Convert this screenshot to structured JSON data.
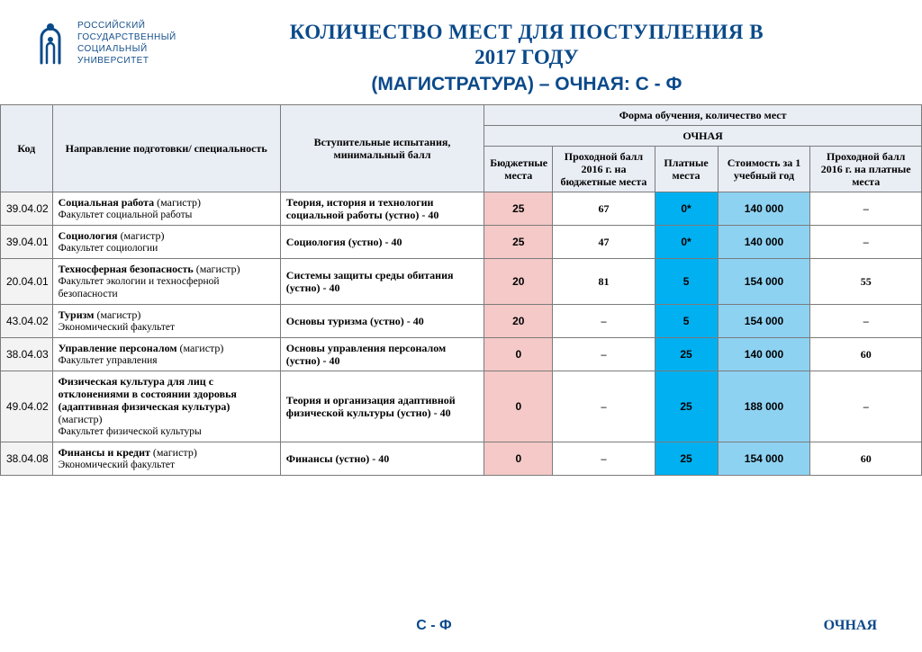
{
  "brand": {
    "line1": "РОССИЙСКИЙ",
    "line2": "ГОСУДАРСТВЕННЫЙ",
    "line3": "СОЦИАЛЬНЫЙ",
    "line4": "УНИВЕРСИТЕТ",
    "color": "#144f8a"
  },
  "title": {
    "line1": "КОЛИЧЕСТВО МЕСТ ДЛЯ ПОСТУПЛЕНИЯ В",
    "line2": "2017 ГОДУ",
    "line3": "(МАГИСТРАТУРА) – ОЧНАЯ: С - Ф",
    "color": "#0b4a8a"
  },
  "columns": {
    "code": "Код",
    "direction": "Направление подготовки/ специальность",
    "exam": "Вступительные испытания, минимальный балл",
    "group_top": "Форма обучения, количество мест",
    "group_sub": "ОЧНАЯ",
    "c1": "Бюджетные места",
    "c2": "Проходной балл 2016 г. на бюджетные места",
    "c3": "Платные места",
    "c4": "Стоимость за 1 учебный год",
    "c5": "Проходной балл 2016 г. на платные места"
  },
  "colors": {
    "header_bg": "#e9edf4",
    "code_bg": "#f3f3f3",
    "c1_bg": "#f4c9c7",
    "c3_bg": "#00b0f0",
    "c4_bg": "#8ed2f2",
    "border": "#7b7b7b",
    "page_bg": "#ffffff"
  },
  "rows": [
    {
      "code": "39.04.02",
      "dir_main": "Социальная работа",
      "dir_spec": "(магистр)",
      "dir_fac": "Факультет социальной работы",
      "exam": "Теория, история и технологии социальной работы (устно) - 40",
      "c1": "25",
      "c2": "67",
      "c3": "0*",
      "c4": "140 000",
      "c5": "–"
    },
    {
      "code": "39.04.01",
      "dir_main": "Социология",
      "dir_spec": "(магистр)",
      "dir_fac": "Факультет социологии",
      "exam": "Социология (устно) - 40",
      "c1": "25",
      "c2": "47",
      "c3": "0*",
      "c4": "140 000",
      "c5": "–"
    },
    {
      "code": "20.04.01",
      "dir_main": "Техносферная безопасность",
      "dir_spec": "(магистр)",
      "dir_fac": "Факультет экологии и техносферной безопасности",
      "exam": "Системы защиты среды обитания (устно) - 40",
      "c1": "20",
      "c2": "81",
      "c3": "5",
      "c4": "154 000",
      "c5": "55"
    },
    {
      "code": "43.04.02",
      "dir_main": "Туризм",
      "dir_spec": "(магистр)",
      "dir_fac": "Экономический факультет",
      "exam": "Основы туризма (устно) - 40",
      "c1": "20",
      "c2": "–",
      "c3": "5",
      "c4": "154 000",
      "c5": "–"
    },
    {
      "code": "38.04.03",
      "dir_main": "Управление персоналом",
      "dir_spec": "(магистр)",
      "dir_fac": "Факультет управления",
      "exam": "Основы управления персоналом (устно) - 40",
      "c1": "0",
      "c2": "–",
      "c3": "25",
      "c4": "140 000",
      "c5": "60"
    },
    {
      "code": "49.04.02",
      "dir_main": "Физическая культура для лиц с отклонениями в состоянии здоровья (адаптивная физическая культура)",
      "dir_spec": "(магистр)",
      "dir_fac": "Факультет физической культуры",
      "exam": "Теория и организация адаптивной физической культуры (устно) - 40",
      "c1": "0",
      "c2": "–",
      "c3": "25",
      "c4": "188 000",
      "c5": "–"
    },
    {
      "code": "38.04.08",
      "dir_main": "Финансы и кредит",
      "dir_spec": "(магистр)",
      "dir_fac": "Экономический факультет",
      "exam": "Финансы (устно) - 40",
      "c1": "0",
      "c2": "–",
      "c3": "25",
      "c4": "154 000",
      "c5": "60"
    }
  ],
  "footer": {
    "center": "С - Ф",
    "right": "ОЧНАЯ"
  }
}
